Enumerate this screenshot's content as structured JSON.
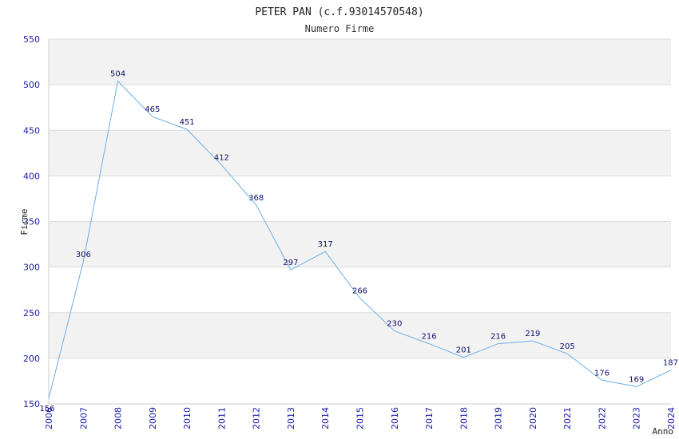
{
  "chart_data": {
    "type": "line",
    "title": "PETER PAN (c.f.93014570548)",
    "subtitle": "Numero Firme",
    "xlabel": "Anno",
    "ylabel": "Firme",
    "x": [
      "2006",
      "2007",
      "2008",
      "2009",
      "2010",
      "2011",
      "2012",
      "2013",
      "2014",
      "2015",
      "2016",
      "2017",
      "2018",
      "2019",
      "2020",
      "2021",
      "2022",
      "2023",
      "2024"
    ],
    "values": [
      156,
      306,
      504,
      465,
      451,
      412,
      368,
      297,
      317,
      266,
      230,
      216,
      201,
      216,
      219,
      205,
      176,
      169,
      187
    ],
    "ylim": [
      150,
      550
    ],
    "yticks": [
      150,
      200,
      250,
      300,
      350,
      400,
      450,
      500,
      550
    ],
    "grid": true,
    "colors": {
      "line": "#6aaee8",
      "band": "#f2f2f2",
      "tick": "#1a1aa8",
      "label": "#101070"
    }
  }
}
